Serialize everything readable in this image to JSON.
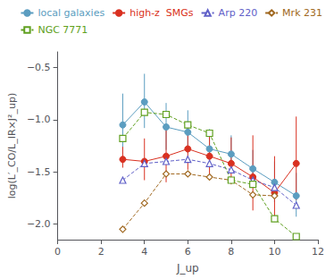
{
  "chart_data": {
    "type": "line",
    "xlabel": "J_up",
    "ylabel": "log(L′_CO/L_IR×J²_up)",
    "xlim": [
      0,
      12
    ],
    "xticks": [
      0,
      2,
      4,
      6,
      8,
      10,
      12
    ],
    "ylim": [
      -2.15,
      -0.35
    ],
    "yticks": [
      {
        "value": -2.0,
        "label": "−2.0"
      },
      {
        "value": -1.5,
        "label": "−1.5"
      },
      {
        "value": -1.0,
        "label": "−1.0"
      },
      {
        "value": -0.5,
        "label": "−0.5"
      }
    ],
    "grid": false,
    "legend": "upper right",
    "series": [
      {
        "name": "local galaxies",
        "color": "#5b9dc0",
        "marker": "circle",
        "line_style": "solid",
        "x": [
          3,
          4,
          5,
          6,
          7,
          8,
          9,
          10,
          11
        ],
        "values": [
          -1.05,
          -0.83,
          -1.07,
          -1.12,
          -1.28,
          -1.33,
          -1.47,
          -1.6,
          -1.73
        ],
        "yerr_lo": [
          0.28,
          0.25,
          0.22,
          0.2,
          0.18,
          0.17,
          0.17,
          0.19,
          0.2
        ],
        "yerr_hi": [
          0.3,
          0.27,
          0.23,
          0.21,
          0.19,
          0.18,
          0.18,
          0.2,
          0.22
        ]
      },
      {
        "name": "high-z  SMGs",
        "color": "#d93020",
        "marker": "circle",
        "line_style": "solid",
        "x": [
          3,
          4,
          5,
          6,
          7,
          8,
          9,
          10,
          11
        ],
        "values": [
          -1.38,
          -1.4,
          -1.35,
          -1.28,
          -1.35,
          -1.42,
          -1.55,
          -1.7,
          -1.42
        ],
        "yerr_lo": [
          0.08,
          0.18,
          0.25,
          0.2,
          0.18,
          0.2,
          0.32,
          0.28,
          0.35
        ],
        "yerr_hi": [
          0.12,
          0.22,
          0.3,
          0.25,
          0.2,
          0.25,
          0.4,
          0.35,
          0.45
        ]
      },
      {
        "name": "Arp 220",
        "color": "#6060c8",
        "marker": "triangle_open",
        "line_style": "dashed",
        "x": [
          3,
          4,
          5,
          6,
          7,
          8,
          9,
          10,
          11
        ],
        "values": [
          -1.58,
          -1.42,
          -1.4,
          -1.38,
          -1.42,
          -1.48,
          -1.58,
          -1.65,
          -1.82
        ]
      },
      {
        "name": "Mrk 231",
        "color": "#a06820",
        "marker": "diamond_open",
        "line_style": "dashed",
        "x": [
          3,
          4,
          5,
          6,
          7,
          8,
          9,
          10
        ],
        "values": [
          -2.05,
          -1.8,
          -1.52,
          -1.52,
          -1.55,
          -1.58,
          -1.72,
          -1.73
        ]
      },
      {
        "name": "NGC 7771",
        "color": "#60a020",
        "marker": "square_open",
        "line_style": "dashed",
        "x": [
          3,
          4,
          5,
          6,
          7,
          8,
          9,
          10,
          11
        ],
        "values": [
          -1.18,
          -0.93,
          -0.95,
          -1.05,
          -1.13,
          -1.58,
          -1.62,
          -1.95,
          -2.12
        ]
      }
    ]
  }
}
